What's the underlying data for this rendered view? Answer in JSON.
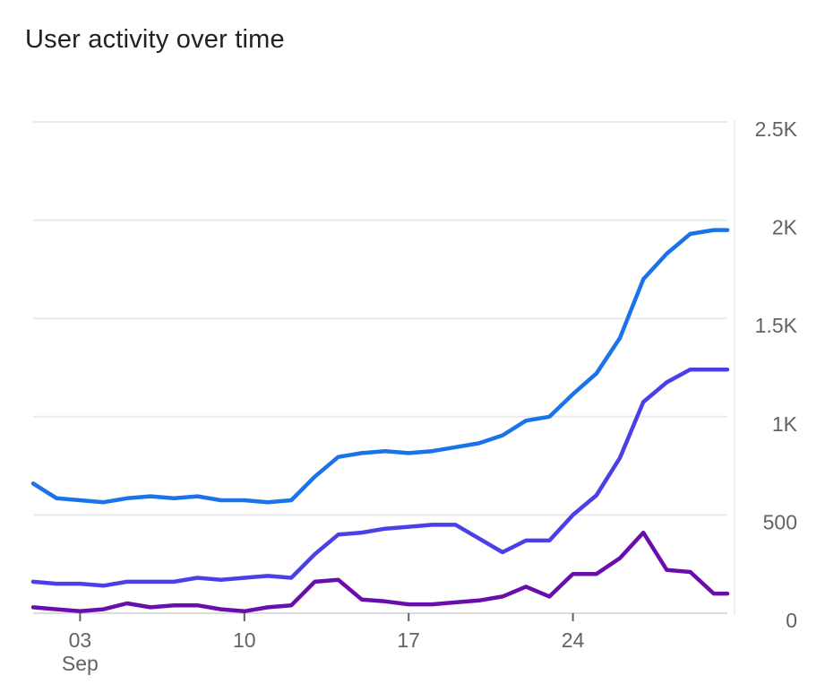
{
  "title": "User activity over time",
  "chart_data": {
    "type": "line",
    "x_start": "2023-09-01",
    "x_ticks": [
      {
        "date": "2023-09-03",
        "label": "03",
        "sublabel": "Sep"
      },
      {
        "date": "2023-09-10",
        "label": "10",
        "sublabel": ""
      },
      {
        "date": "2023-09-17",
        "label": "17",
        "sublabel": ""
      },
      {
        "date": "2023-09-24",
        "label": "24",
        "sublabel": ""
      }
    ],
    "y_ticks": [
      {
        "value": 0,
        "label": "0"
      },
      {
        "value": 500,
        "label": "500"
      },
      {
        "value": 1000,
        "label": "1K"
      },
      {
        "value": 1500,
        "label": "1.5K"
      },
      {
        "value": 2000,
        "label": "2K"
      },
      {
        "value": 2500,
        "label": "2.5K"
      }
    ],
    "ylim": [
      0,
      2500
    ],
    "grid": true,
    "series": [
      {
        "color": "#1a73e8",
        "x": [
          "2023-09-01",
          "2023-09-02",
          "2023-09-03",
          "2023-09-04",
          "2023-09-05",
          "2023-09-06",
          "2023-09-07",
          "2023-09-08",
          "2023-09-09",
          "2023-09-10",
          "2023-09-11",
          "2023-09-12",
          "2023-09-13",
          "2023-09-14",
          "2023-09-15",
          "2023-09-16",
          "2023-09-17",
          "2023-09-18",
          "2023-09-19",
          "2023-09-20",
          "2023-09-21",
          "2023-09-22",
          "2023-09-23",
          "2023-09-24",
          "2023-09-25",
          "2023-09-26",
          "2023-09-27",
          "2023-09-28",
          "2023-09-29",
          "2023-09-30",
          "2023-10-01"
        ],
        "values": [
          660,
          585,
          575,
          565,
          585,
          595,
          585,
          595,
          575,
          575,
          565,
          575,
          695,
          795,
          815,
          825,
          815,
          825,
          845,
          865,
          905,
          980,
          1000,
          1115,
          1220,
          1400,
          1700,
          1830,
          1930,
          1950,
          1950
        ]
      },
      {
        "color": "#4b3fe8",
        "x": [
          "2023-09-01",
          "2023-09-02",
          "2023-09-03",
          "2023-09-04",
          "2023-09-05",
          "2023-09-06",
          "2023-09-07",
          "2023-09-08",
          "2023-09-09",
          "2023-09-10",
          "2023-09-11",
          "2023-09-12",
          "2023-09-13",
          "2023-09-14",
          "2023-09-15",
          "2023-09-16",
          "2023-09-17",
          "2023-09-18",
          "2023-09-19",
          "2023-09-20",
          "2023-09-21",
          "2023-09-22",
          "2023-09-23",
          "2023-09-24",
          "2023-09-25",
          "2023-09-26",
          "2023-09-27",
          "2023-09-28",
          "2023-09-29",
          "2023-09-30",
          "2023-10-01"
        ],
        "values": [
          160,
          150,
          150,
          140,
          160,
          160,
          160,
          180,
          170,
          180,
          190,
          180,
          300,
          400,
          410,
          430,
          440,
          450,
          450,
          380,
          310,
          370,
          370,
          500,
          600,
          790,
          1075,
          1175,
          1240,
          1240,
          1240
        ]
      },
      {
        "color": "#6a0dad",
        "x": [
          "2023-09-01",
          "2023-09-02",
          "2023-09-03",
          "2023-09-04",
          "2023-09-05",
          "2023-09-06",
          "2023-09-07",
          "2023-09-08",
          "2023-09-09",
          "2023-09-10",
          "2023-09-11",
          "2023-09-12",
          "2023-09-13",
          "2023-09-14",
          "2023-09-15",
          "2023-09-16",
          "2023-09-17",
          "2023-09-18",
          "2023-09-19",
          "2023-09-20",
          "2023-09-21",
          "2023-09-22",
          "2023-09-23",
          "2023-09-24",
          "2023-09-25",
          "2023-09-26",
          "2023-09-27",
          "2023-09-28",
          "2023-09-29",
          "2023-09-30",
          "2023-10-01"
        ],
        "values": [
          30,
          20,
          10,
          20,
          50,
          30,
          40,
          40,
          20,
          10,
          30,
          40,
          160,
          170,
          70,
          60,
          45,
          45,
          55,
          65,
          85,
          135,
          85,
          200,
          200,
          280,
          410,
          220,
          210,
          100,
          100
        ]
      }
    ]
  }
}
